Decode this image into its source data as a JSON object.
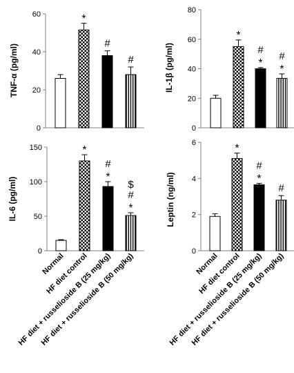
{
  "categories": [
    "Normal",
    "HF diet control",
    "HF diet + russelioside B (25 mg/kg)",
    "HF diet + russelioside B (50 mg/kg)"
  ],
  "colors": {
    "bar_stroke": "#000000",
    "axis": "#7f7f7f",
    "text": "#000000"
  },
  "chart_data": [
    {
      "type": "bar",
      "ylabel": "TNF-α (pg/ml)",
      "ylim": [
        0,
        60
      ],
      "yticks": [
        0,
        20,
        40,
        60
      ],
      "categories": [
        "Normal",
        "HF diet control",
        "HF diet + russelioside B (25 mg/kg)",
        "HF diet + russelioside B (50 mg/kg)"
      ],
      "values": [
        26,
        51.5,
        38,
        28
      ],
      "errors": [
        2,
        3.5,
        2.5,
        4
      ],
      "annotations": [
        [],
        [
          "*"
        ],
        [
          "#"
        ],
        [
          "#"
        ]
      ]
    },
    {
      "type": "bar",
      "ylabel": "IL-1β (pg/ml)",
      "ylim": [
        0,
        80
      ],
      "yticks": [
        0,
        20,
        40,
        60,
        80
      ],
      "categories": [
        "Normal",
        "HF diet control",
        "HF diet + russelioside B (25 mg/kg)",
        "HF diet + russelioside B (50 mg/kg)"
      ],
      "values": [
        20,
        55,
        40,
        33.5
      ],
      "errors": [
        2,
        4.5,
        0.8,
        3
      ],
      "annotations": [
        [],
        [
          "*"
        ],
        [
          "#",
          "*"
        ],
        [
          "#",
          "*"
        ]
      ]
    },
    {
      "type": "bar",
      "ylabel": "IL-6 (pg/ml)",
      "ylim": [
        0,
        150
      ],
      "yticks": [
        0,
        50,
        100,
        150
      ],
      "categories": [
        "Normal",
        "HF diet control",
        "HF diet + russelioside B (25 mg/kg)",
        "HF diet + russelioside B (50 mg/kg)"
      ],
      "values": [
        15,
        130,
        93,
        51
      ],
      "errors": [
        1,
        9,
        7,
        4
      ],
      "annotations": [
        [],
        [
          "*"
        ],
        [
          "#",
          "*"
        ],
        [
          "$",
          "#",
          "*"
        ]
      ]
    },
    {
      "type": "bar",
      "ylabel": "Leptin (ng/ml)",
      "ylim": [
        0,
        6
      ],
      "yticks": [
        0,
        2,
        4,
        6
      ],
      "categories": [
        "Normal",
        "HF diet control",
        "HF diet + russelioside B (25 mg/kg)",
        "HF diet + russelioside B (50 mg/kg)"
      ],
      "values": [
        1.9,
        5.1,
        3.65,
        2.8
      ],
      "errors": [
        0.15,
        0.3,
        0.08,
        0.25
      ],
      "annotations": [
        [],
        [
          "*"
        ],
        [
          "#",
          "*"
        ],
        [
          "#"
        ]
      ]
    }
  ]
}
